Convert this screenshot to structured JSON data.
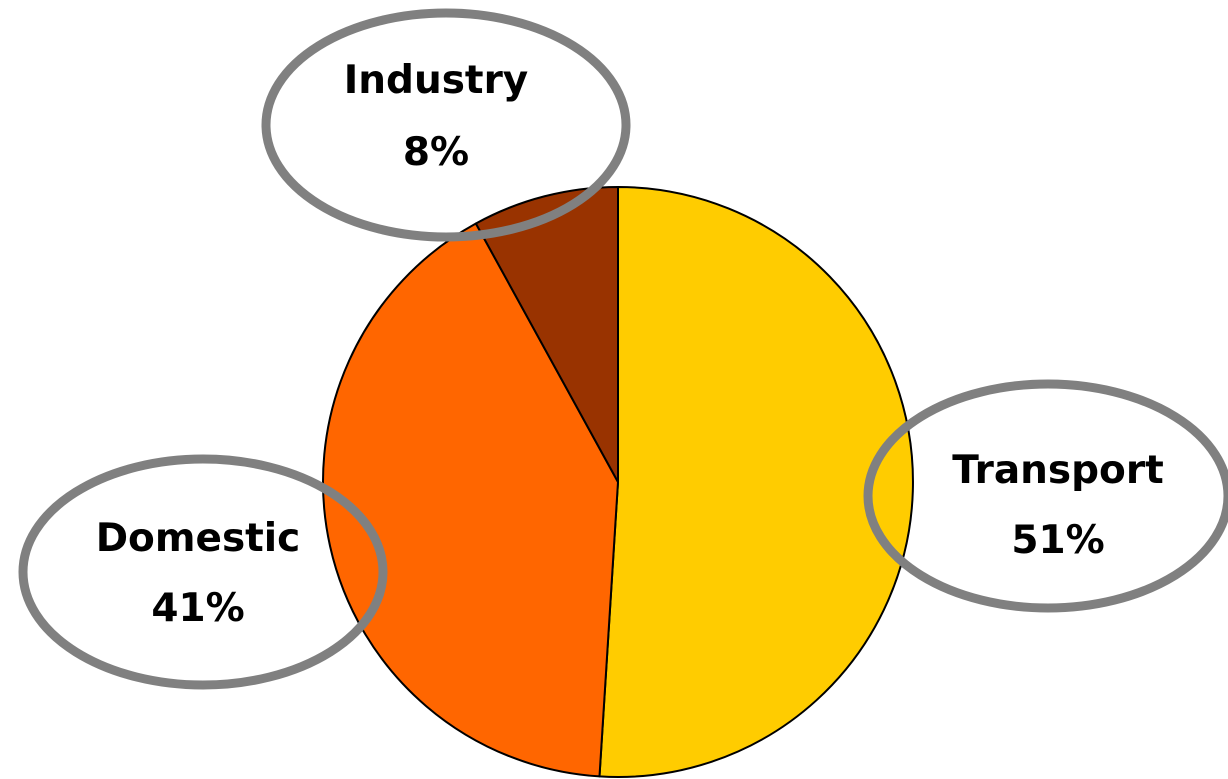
{
  "chart_data": {
    "type": "pie",
    "slices": [
      {
        "label": "Transport",
        "percent_label": "51%",
        "value": 51,
        "color": "#FFCC00"
      },
      {
        "label": "Domestic",
        "percent_label": "41%",
        "value": 41,
        "color": "#FF6600"
      },
      {
        "label": "Industry",
        "percent_label": "8%",
        "value": 8,
        "color": "#993300"
      }
    ],
    "slice_outline_color": "#000000",
    "label_ellipse_color": "#808080",
    "legend": "none"
  }
}
